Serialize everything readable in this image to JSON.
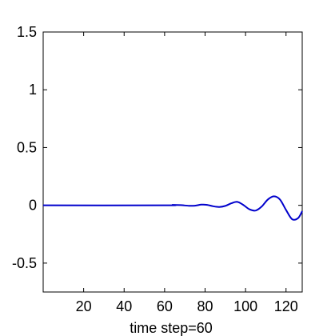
{
  "chart_data": {
    "type": "line",
    "title": "",
    "xlabel": "time step=60",
    "ylabel": "",
    "xlim": [
      0,
      128
    ],
    "ylim": [
      -0.75,
      1.5
    ],
    "xticks": [
      20,
      40,
      60,
      80,
      100,
      120
    ],
    "yticks": [
      -0.5,
      0,
      0.5,
      1,
      1.5
    ],
    "xtick_labels": [
      "20",
      "40",
      "60",
      "80",
      "100",
      "120"
    ],
    "ytick_labels": [
      "-0.5",
      "0",
      "0.5",
      "1",
      "1.5"
    ],
    "grid": false,
    "series": [
      {
        "color": "#0000cc",
        "x": [
          0,
          60,
          64,
          68,
          72,
          75,
          78,
          81,
          84,
          87,
          90,
          93,
          96,
          99,
          102,
          105,
          108,
          111,
          114,
          117,
          120,
          123,
          126,
          128
        ],
        "values": [
          0,
          0,
          0.004,
          0.002,
          -0.004,
          -0.003,
          0.006,
          0.004,
          -0.008,
          -0.014,
          -0.005,
          0.018,
          0.03,
          0.002,
          -0.035,
          -0.045,
          -0.01,
          0.05,
          0.078,
          0.05,
          -0.04,
          -0.12,
          -0.11,
          -0.05
        ]
      }
    ]
  }
}
